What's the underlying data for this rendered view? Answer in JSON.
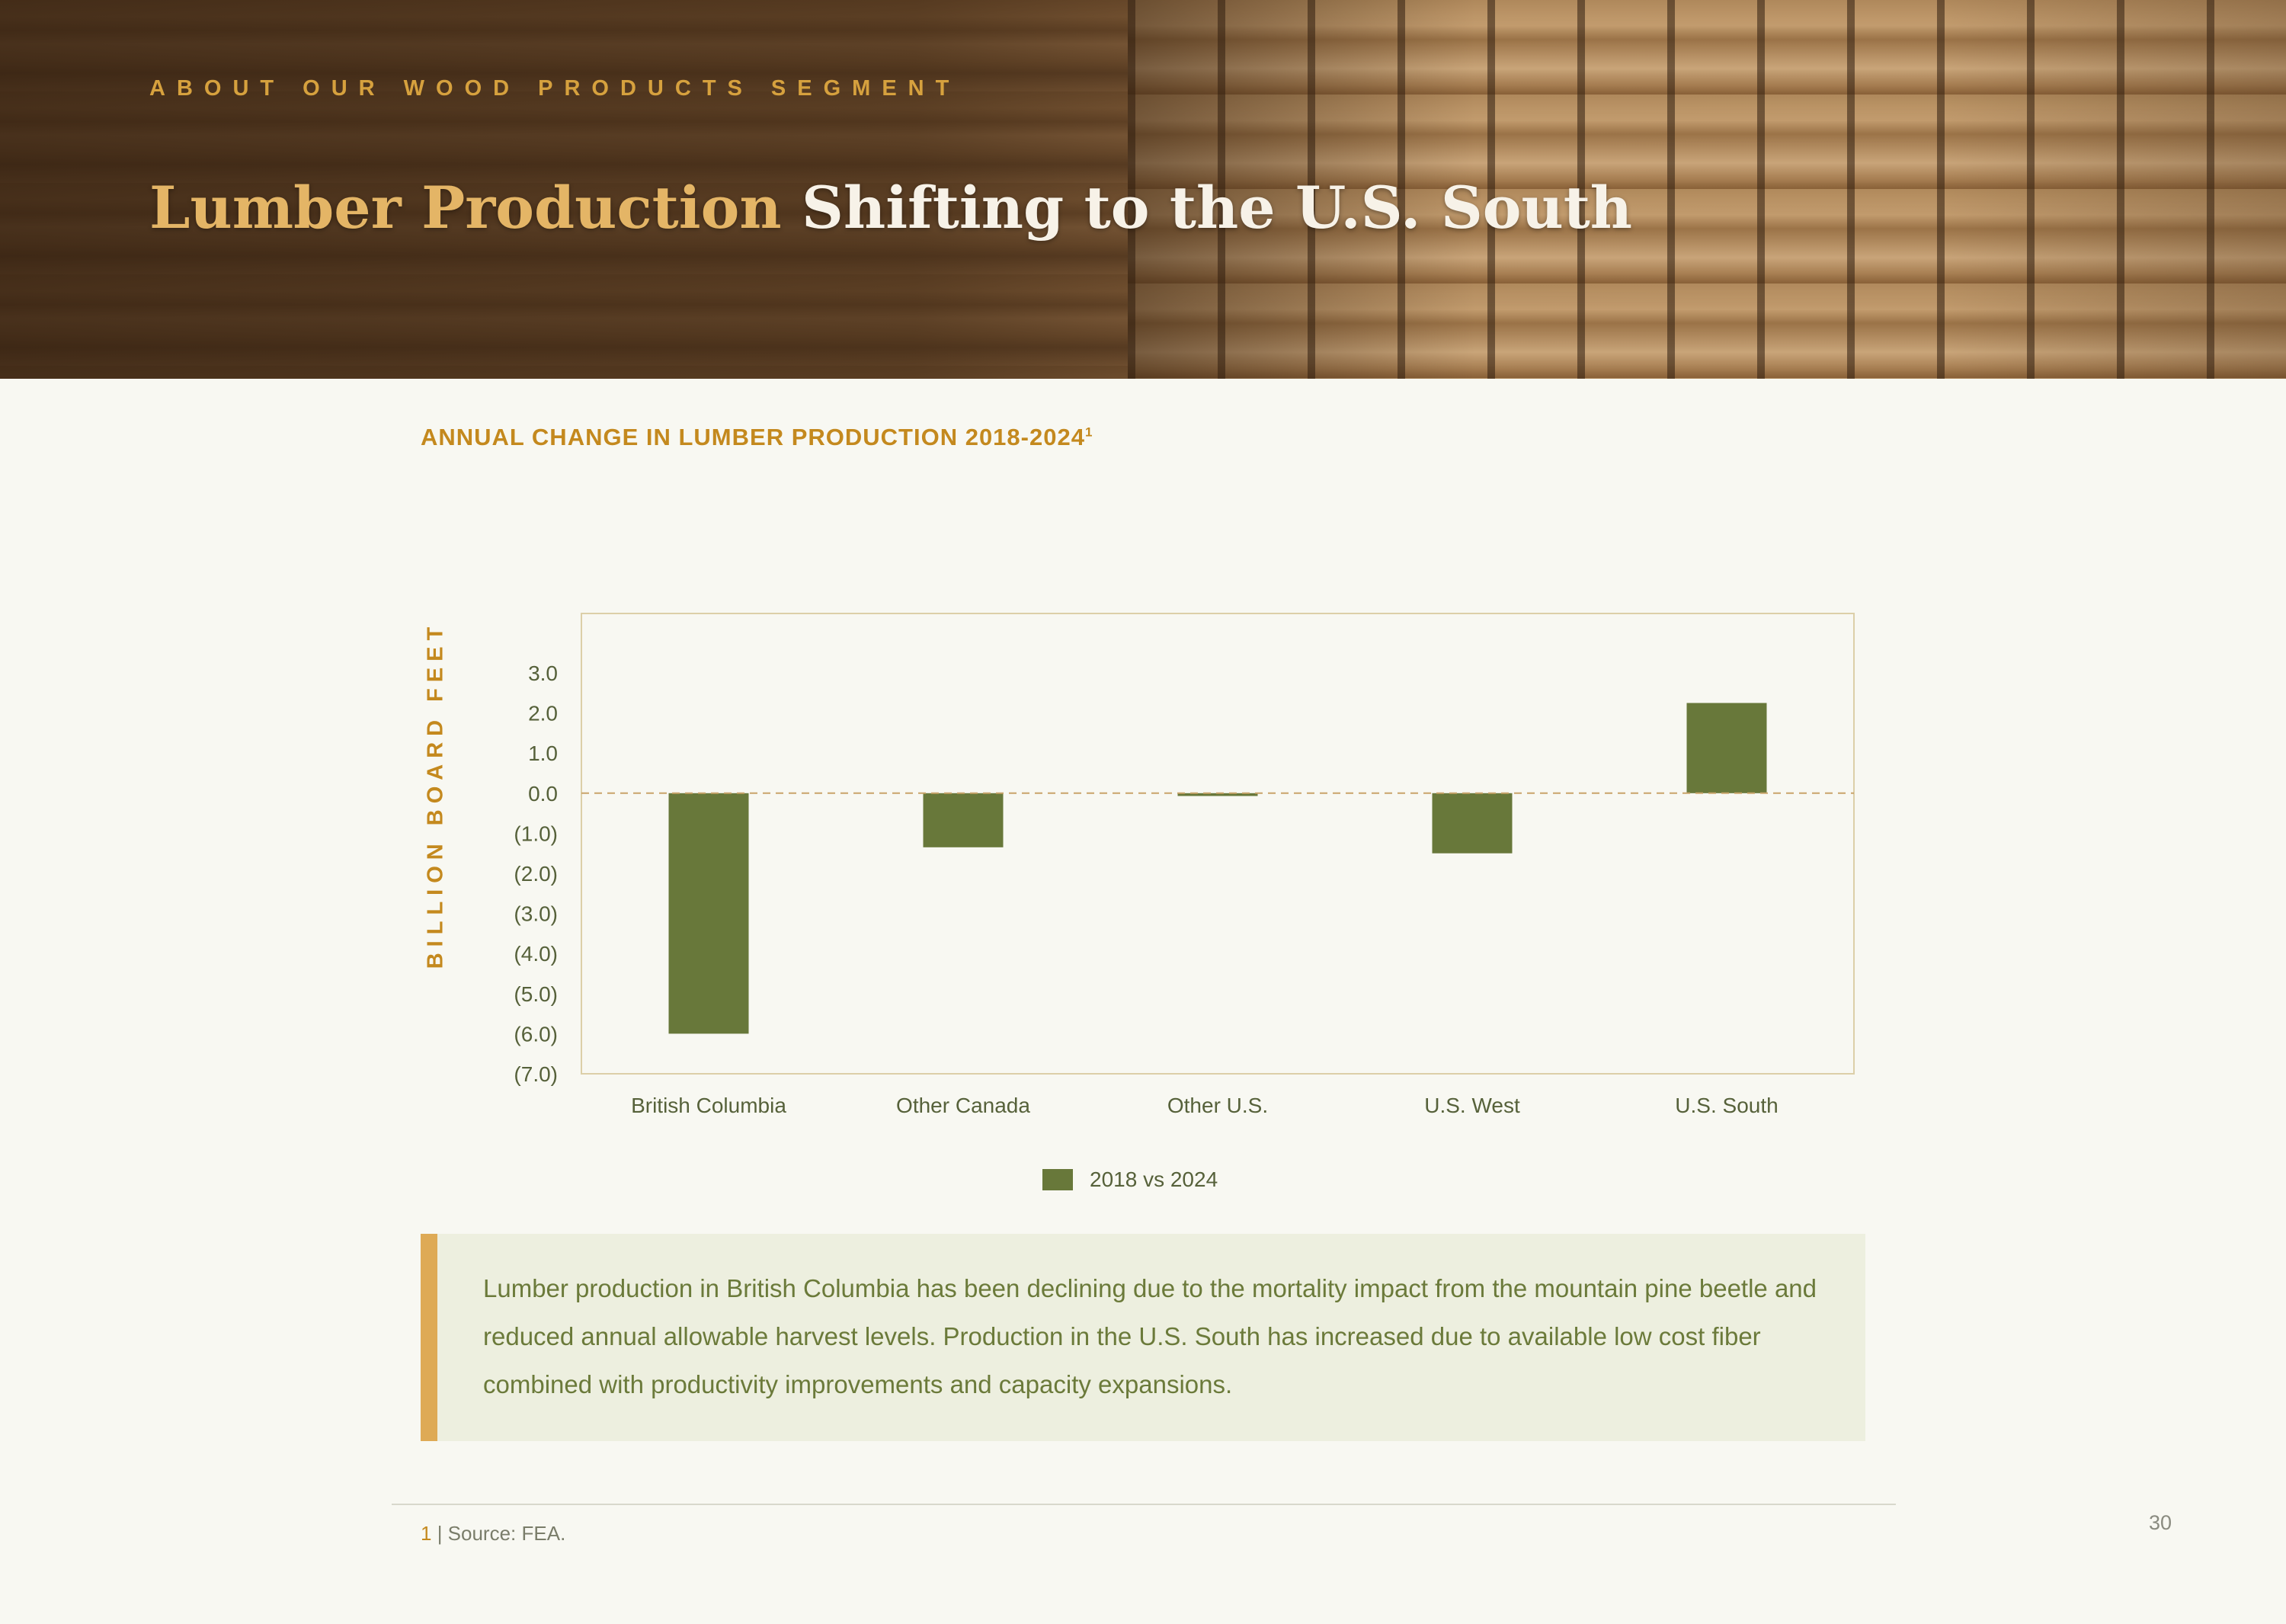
{
  "header": {
    "eyebrow": "ABOUT OUR WOOD PRODUCTS SEGMENT",
    "title_highlight": "Lumber Production",
    "title_rest": " Shifting to the U.S. South"
  },
  "chart_data": {
    "type": "bar",
    "title": "ANNUAL CHANGE IN LUMBER PRODUCTION 2018-2024",
    "title_footnote": "1",
    "ylabel": "BILLION BOARD FEET",
    "xlabel": "",
    "categories": [
      "British Columbia",
      "Other Canada",
      "Other U.S.",
      "U.S. West",
      "U.S. South"
    ],
    "series": [
      {
        "name": "2018 vs 2024",
        "values": [
          -6.0,
          -1.35,
          -0.07,
          -1.5,
          2.25
        ],
        "color": "#68783a"
      }
    ],
    "ylim": [
      -7.0,
      3.0
    ],
    "yticks": [
      3,
      2,
      1,
      0,
      -1,
      -2,
      -3,
      -4,
      -5,
      -6,
      -7
    ],
    "ytick_labels": [
      "3.0",
      "2.0",
      "1.0",
      "0.0",
      "(1.0)",
      "(2.0)",
      "(3.0)",
      "(4.0)",
      "(5.0)",
      "(6.0)",
      "(7.0)"
    ],
    "zero_line": "dashed",
    "grid": false,
    "legend": "bottom-center"
  },
  "callout": {
    "text": "Lumber production in British Columbia has been declining due to the mortality impact from the mountain pine beetle and reduced annual allowable harvest levels. Production in the U.S. South has increased due to available low cost fiber combined with productivity improvements and capacity expansions."
  },
  "footer": {
    "footnote_number": "1",
    "footnote_text": " | Source: FEA.",
    "page_number": "30"
  },
  "colors": {
    "accent": "#c4891e",
    "bar": "#68783a",
    "callout_bg": "#edefdf",
    "callout_border": "#deaa55"
  }
}
